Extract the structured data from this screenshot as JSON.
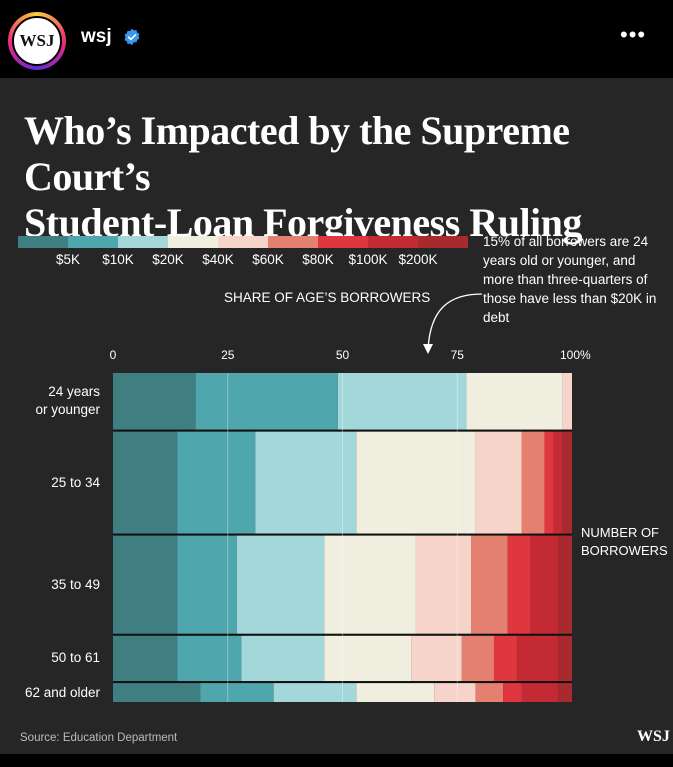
{
  "header": {
    "avatar_text": "WSJ",
    "username": "wsj",
    "more_label": "•••"
  },
  "post": {
    "title_line1": "Who’s Impacted by the Supreme Court’s",
    "title_line2": "Student-Loan Forgiveness Ruling",
    "share_label": "SHARE OF AGE’S BORROWERS",
    "annotation": "15% of all borrowers are 24 years old or younger, and more than three-quarters of those have less than $20K in debt",
    "count_label_line1": "NUMBER OF",
    "count_label_line2": "BORROWERS",
    "source": "Source: Education Department",
    "logo": "WSJ"
  },
  "colors": {
    "bins": [
      "#3f7f82",
      "#4fa6ac",
      "#a4d7da",
      "#efeedf",
      "#f6d4ca",
      "#e4806f",
      "#e0363f",
      "#c42a33",
      "#a92a2e"
    ],
    "gridline": "#262626"
  },
  "chart_data": {
    "type": "bar",
    "stacked": true,
    "orientation": "horizontal",
    "title": "Who’s Impacted by the Supreme Court’s Student-Loan Forgiveness Ruling",
    "xlabel": "SHARE OF AGE’S BORROWERS",
    "ylabel": "NUMBER OF BORROWERS",
    "xlim": [
      0,
      100
    ],
    "x_ticks": [
      "0",
      "25",
      "50",
      "75",
      "100%"
    ],
    "x_tick_values": [
      0,
      25,
      50,
      75,
      100
    ],
    "legend_ticks": [
      "$5K",
      "$10K",
      "$20K",
      "$40K",
      "$60K",
      "$80K",
      "$100K",
      "$200K"
    ],
    "categories": [
      "24 years or younger",
      "25 to 34",
      "35 to 49",
      "50 to 61",
      "62 and older"
    ],
    "category_lines": [
      [
        "24 years",
        "or younger"
      ],
      [
        "25 to 34"
      ],
      [
        "35 to 49"
      ],
      [
        "50 to 61"
      ],
      [
        "62 and older"
      ]
    ],
    "relative_row_size": [
      15,
      27,
      26,
      12,
      5
    ],
    "shares": [
      [
        18,
        31,
        28,
        21,
        2,
        0,
        0,
        0,
        0
      ],
      [
        14,
        17,
        22,
        26,
        10,
        5,
        2,
        2,
        2
      ],
      [
        14,
        13,
        19,
        20,
        12,
        8,
        5,
        6,
        3
      ],
      [
        14,
        14,
        18,
        19,
        11,
        7,
        5,
        9,
        3
      ],
      [
        19,
        16,
        18,
        17,
        9,
        6,
        4,
        8,
        3
      ]
    ]
  }
}
